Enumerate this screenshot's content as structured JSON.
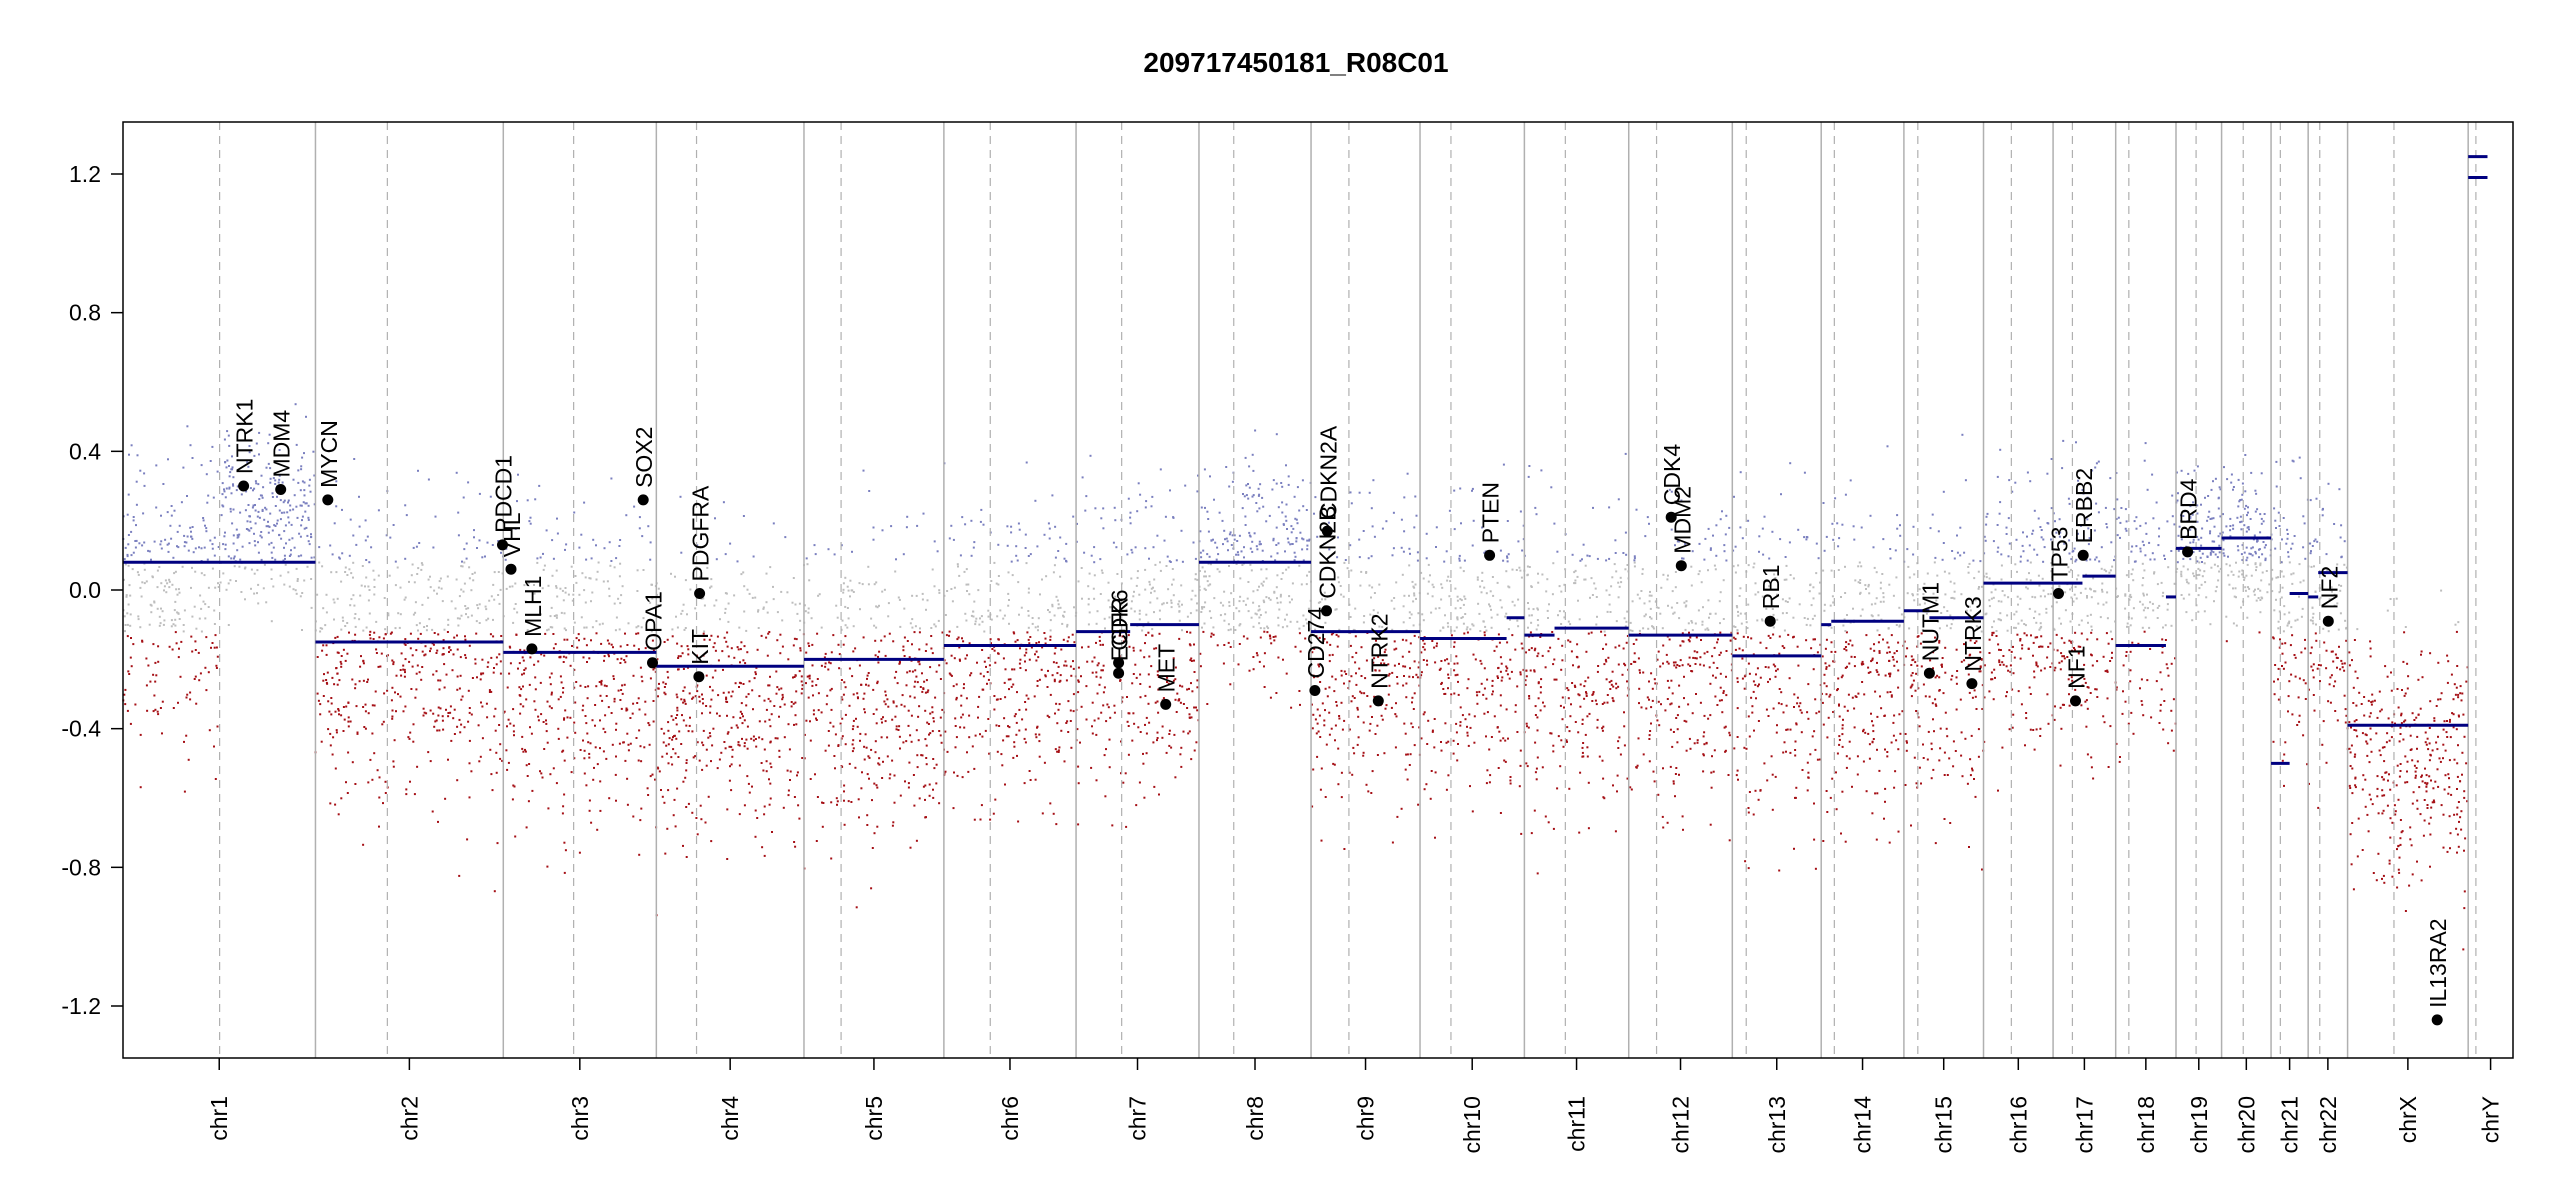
{
  "chart_data": {
    "type": "scatter",
    "title": "209717450181_R08C01",
    "xlabel": "",
    "ylabel": "",
    "ylim": [
      -1.35,
      1.35
    ],
    "y_ticks": [
      1.2,
      0.8,
      0.4,
      0.0,
      -0.4,
      -0.8,
      -1.2
    ],
    "y_tick_labels": [
      "1.2",
      "0.8",
      "0.4",
      "0.0",
      "-0.4",
      "-0.8",
      "-1.2"
    ],
    "x_unit": "Mb (cumulative genome position)",
    "colors": {
      "gain": "#7a7fbf",
      "neutral": "#bdbdbd",
      "loss": "#a50f15",
      "segment": "#000080",
      "boundary": "#b0b0b0",
      "centromere": "#b0b0b0",
      "gene_point": "#000000"
    },
    "chromosomes": [
      {
        "name": "chr1",
        "start": 0,
        "end": 249,
        "centromere": 125
      },
      {
        "name": "chr2",
        "start": 249,
        "end": 492,
        "centromere": 342
      },
      {
        "name": "chr3",
        "start": 492,
        "end": 690,
        "centromere": 583
      },
      {
        "name": "chr4",
        "start": 690,
        "end": 881,
        "centromere": 742
      },
      {
        "name": "chr5",
        "start": 881,
        "end": 1062,
        "centromere": 929
      },
      {
        "name": "chr6",
        "start": 1062,
        "end": 1233,
        "centromere": 1122
      },
      {
        "name": "chr7",
        "start": 1233,
        "end": 1392,
        "centromere": 1292
      },
      {
        "name": "chr8",
        "start": 1392,
        "end": 1537,
        "centromere": 1437
      },
      {
        "name": "chr9",
        "start": 1537,
        "end": 1678,
        "centromere": 1586
      },
      {
        "name": "chr10",
        "start": 1678,
        "end": 1813,
        "centromere": 1718
      },
      {
        "name": "chr11",
        "start": 1813,
        "end": 1948,
        "centromere": 1866
      },
      {
        "name": "chr12",
        "start": 1948,
        "end": 2082,
        "centromere": 1984
      },
      {
        "name": "chr13",
        "start": 2082,
        "end": 2197,
        "centromere": 2100
      },
      {
        "name": "chr14",
        "start": 2197,
        "end": 2304,
        "centromere": 2214
      },
      {
        "name": "chr15",
        "start": 2304,
        "end": 2407,
        "centromere": 2322
      },
      {
        "name": "chr16",
        "start": 2407,
        "end": 2497,
        "centromere": 2443
      },
      {
        "name": "chr17",
        "start": 2497,
        "end": 2578,
        "centromere": 2522
      },
      {
        "name": "chr18",
        "start": 2578,
        "end": 2656,
        "centromere": 2595
      },
      {
        "name": "chr19",
        "start": 2656,
        "end": 2715,
        "centromere": 2682
      },
      {
        "name": "chr20",
        "start": 2715,
        "end": 2779,
        "centromere": 2743
      },
      {
        "name": "chr21",
        "start": 2779,
        "end": 2827,
        "centromere": 2791
      },
      {
        "name": "chr22",
        "start": 2827,
        "end": 2878,
        "centromere": 2842
      },
      {
        "name": "chrX",
        "start": 2878,
        "end": 3034,
        "centromere": 2938
      },
      {
        "name": "chrY",
        "start": 3034,
        "end": 3092,
        "centromere": 3044
      }
    ],
    "segments": [
      {
        "x0": 0,
        "x1": 249,
        "y": 0.08
      },
      {
        "x0": 249,
        "x1": 492,
        "y": -0.15
      },
      {
        "x0": 492,
        "x1": 690,
        "y": -0.18
      },
      {
        "x0": 690,
        "x1": 881,
        "y": -0.22
      },
      {
        "x0": 881,
        "x1": 1062,
        "y": -0.2
      },
      {
        "x0": 1062,
        "x1": 1233,
        "y": -0.16
      },
      {
        "x0": 1233,
        "x1": 1303,
        "y": -0.12
      },
      {
        "x0": 1303,
        "x1": 1392,
        "y": -0.1
      },
      {
        "x0": 1392,
        "x1": 1537,
        "y": 0.08
      },
      {
        "x0": 1537,
        "x1": 1678,
        "y": -0.12
      },
      {
        "x0": 1678,
        "x1": 1790,
        "y": -0.14
      },
      {
        "x0": 1790,
        "x1": 1813,
        "y": -0.08
      },
      {
        "x0": 1813,
        "x1": 1852,
        "y": -0.13
      },
      {
        "x0": 1852,
        "x1": 1948,
        "y": -0.11
      },
      {
        "x0": 1948,
        "x1": 2082,
        "y": -0.13
      },
      {
        "x0": 2082,
        "x1": 2197,
        "y": -0.19
      },
      {
        "x0": 2197,
        "x1": 2210,
        "y": -0.1
      },
      {
        "x0": 2210,
        "x1": 2304,
        "y": -0.09
      },
      {
        "x0": 2304,
        "x1": 2337,
        "y": -0.06
      },
      {
        "x0": 2337,
        "x1": 2407,
        "y": -0.08
      },
      {
        "x0": 2407,
        "x1": 2497,
        "y": 0.02
      },
      {
        "x0": 2497,
        "x1": 2535,
        "y": 0.02
      },
      {
        "x0": 2535,
        "x1": 2578,
        "y": 0.04
      },
      {
        "x0": 2578,
        "x1": 2643,
        "y": -0.16
      },
      {
        "x0": 2643,
        "x1": 2656,
        "y": -0.02
      },
      {
        "x0": 2656,
        "x1": 2715,
        "y": 0.12
      },
      {
        "x0": 2715,
        "x1": 2779,
        "y": 0.15
      },
      {
        "x0": 2779,
        "x1": 2803,
        "y": -0.5
      },
      {
        "x0": 2803,
        "x1": 2827,
        "y": -0.01
      },
      {
        "x0": 2827,
        "x1": 2840,
        "y": -0.02
      },
      {
        "x0": 2840,
        "x1": 2878,
        "y": 0.05
      },
      {
        "x0": 2878,
        "x1": 3034,
        "y": -0.39
      },
      {
        "x0": 3034,
        "x1": 3059,
        "y": 1.19
      },
      {
        "x0": 3034,
        "x1": 3059,
        "y": 1.25
      }
    ],
    "noise_profile": [
      {
        "x0": 0,
        "x1": 125,
        "center": 0.0,
        "spread": 0.3
      },
      {
        "x0": 125,
        "x1": 249,
        "center": 0.2,
        "spread": 0.18
      },
      {
        "x0": 249,
        "x1": 492,
        "center": -0.2,
        "spread": 0.3
      },
      {
        "x0": 492,
        "x1": 690,
        "center": -0.22,
        "spread": 0.32
      },
      {
        "x0": 690,
        "x1": 881,
        "center": -0.3,
        "spread": 0.3
      },
      {
        "x0": 881,
        "x1": 1062,
        "center": -0.28,
        "spread": 0.3
      },
      {
        "x0": 1062,
        "x1": 1233,
        "center": -0.22,
        "spread": 0.28
      },
      {
        "x0": 1233,
        "x1": 1392,
        "center": -0.16,
        "spread": 0.3
      },
      {
        "x0": 1392,
        "x1": 1537,
        "center": 0.06,
        "spread": 0.22
      },
      {
        "x0": 1537,
        "x1": 1678,
        "center": -0.2,
        "spread": 0.3
      },
      {
        "x0": 1678,
        "x1": 1948,
        "center": -0.18,
        "spread": 0.3
      },
      {
        "x0": 1948,
        "x1": 2082,
        "center": -0.18,
        "spread": 0.3
      },
      {
        "x0": 2082,
        "x1": 2407,
        "center": -0.2,
        "spread": 0.32
      },
      {
        "x0": 2407,
        "x1": 2656,
        "center": -0.05,
        "spread": 0.28
      },
      {
        "x0": 2656,
        "x1": 2779,
        "center": 0.12,
        "spread": 0.15
      },
      {
        "x0": 2779,
        "x1": 2878,
        "center": -0.1,
        "spread": 0.3
      },
      {
        "x0": 2878,
        "x1": 3034,
        "center": -0.5,
        "spread": 0.25
      }
    ],
    "point_count": 7000,
    "genes": [
      {
        "name": "NTRK1",
        "x": 156,
        "y": 0.3
      },
      {
        "name": "MDM4",
        "x": 204,
        "y": 0.29
      },
      {
        "name": "MYCN",
        "x": 265,
        "y": 0.26
      },
      {
        "name": "PDCD1",
        "x": 491,
        "y": 0.13
      },
      {
        "name": "VHL",
        "x": 502,
        "y": 0.06
      },
      {
        "name": "MLH1",
        "x": 529,
        "y": -0.17
      },
      {
        "name": "SOX2",
        "x": 673,
        "y": 0.26
      },
      {
        "name": "OPA1",
        "x": 685,
        "y": -0.21
      },
      {
        "name": "KIT",
        "x": 745,
        "y": -0.25
      },
      {
        "name": "PDGFRA",
        "x": 746,
        "y": -0.01
      },
      {
        "name": "EGFR",
        "x": 1288,
        "y": -0.24
      },
      {
        "name": "CDK6",
        "x": 1288,
        "y": -0.21
      },
      {
        "name": "MET",
        "x": 1349,
        "y": -0.33
      },
      {
        "name": "CD274",
        "x": 1542,
        "y": -0.29
      },
      {
        "name": "CDKN2B",
        "x": 1557,
        "y": -0.06
      },
      {
        "name": "CDKN2A",
        "x": 1558,
        "y": 0.17
      },
      {
        "name": "NTRK2",
        "x": 1624,
        "y": -0.32
      },
      {
        "name": "PTEN",
        "x": 1768,
        "y": 0.1
      },
      {
        "name": "CDK4",
        "x": 2003,
        "y": 0.21
      },
      {
        "name": "MDM2",
        "x": 2016,
        "y": 0.07
      },
      {
        "name": "RB1",
        "x": 2131,
        "y": -0.09
      },
      {
        "name": "NUTM1",
        "x": 2337,
        "y": -0.24
      },
      {
        "name": "NTRK3",
        "x": 2392,
        "y": -0.27
      },
      {
        "name": "TP53",
        "x": 2504,
        "y": -0.01
      },
      {
        "name": "NF1",
        "x": 2526,
        "y": -0.32
      },
      {
        "name": "ERBB2",
        "x": 2536,
        "y": 0.1
      },
      {
        "name": "BRD4",
        "x": 2671,
        "y": 0.11
      },
      {
        "name": "NF2",
        "x": 2853,
        "y": -0.09
      },
      {
        "name": "IL13RA2",
        "x": 2994,
        "y": -1.24
      }
    ]
  }
}
